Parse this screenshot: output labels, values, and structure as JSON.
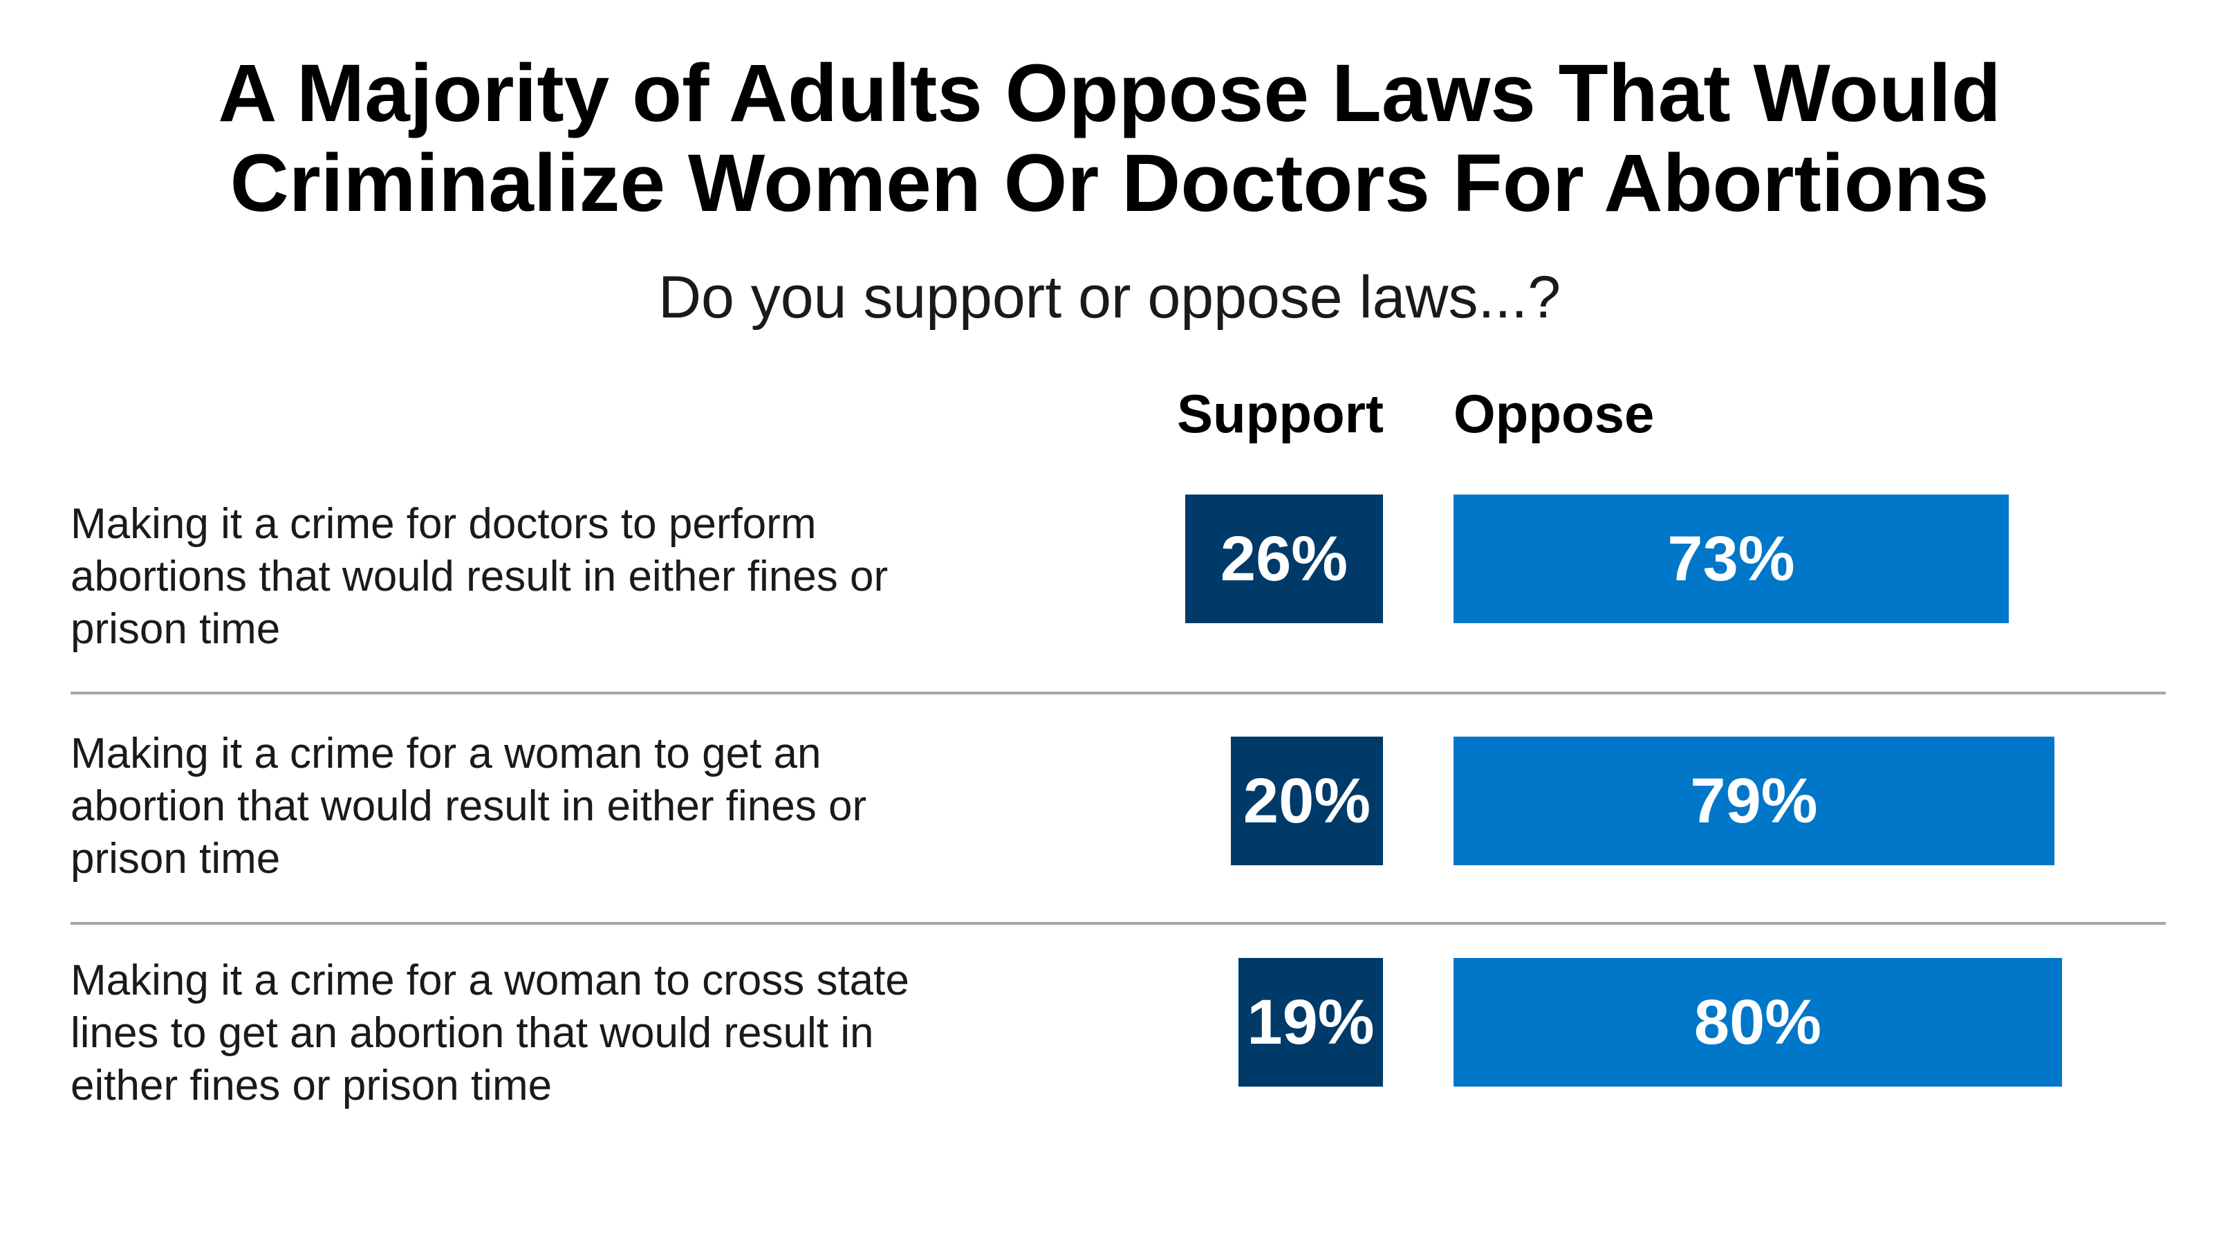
{
  "title_line1": "A Majority of Adults Oppose Laws That Would",
  "title_line2": "Criminalize Women Or Doctors For Abortions",
  "subtitle": "Do you support or oppose laws...?",
  "colors": {
    "support": "#003a68",
    "oppose": "#0077c8",
    "divider": "#a6a6a6"
  },
  "chart_data": {
    "type": "bar",
    "orientation": "horizontal",
    "title": "A Majority of Adults Oppose Laws That Would Criminalize Women Or Doctors For Abortions",
    "subtitle": "Do you support or oppose laws...?",
    "categories": [
      "Making it a crime for doctors to perform abortions that would result in either fines or prison time",
      "Making it a crime for a woman to get an abortion that would result in either fines or prison time",
      "Making it a crime for a woman to cross state lines to get an abortion that would result in either fines or prison time"
    ],
    "series": [
      {
        "name": "Support",
        "values": [
          26,
          20,
          19
        ],
        "labels": [
          "26%",
          "20%",
          "19%"
        ]
      },
      {
        "name": "Oppose",
        "values": [
          73,
          79,
          80
        ],
        "labels": [
          "73%",
          "79%",
          "80%"
        ]
      }
    ],
    "unit": "%"
  }
}
